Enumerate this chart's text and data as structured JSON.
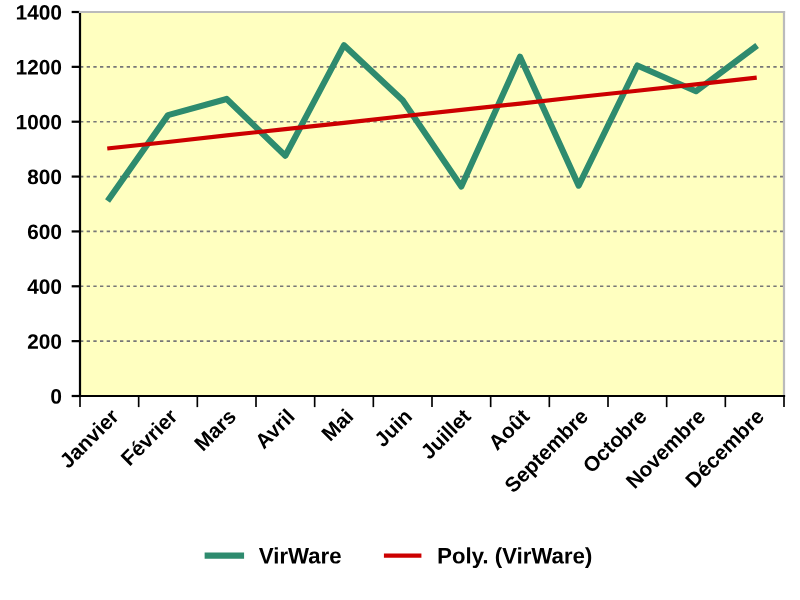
{
  "chart_data": {
    "type": "line",
    "categories": [
      "Janvier",
      "Février",
      "Mars",
      "Avril",
      "Mai",
      "Juin",
      "Juillet",
      "Août",
      "Septembre",
      "Octobre",
      "Novembre",
      "Décembre"
    ],
    "series": [
      {
        "name": "VirWare",
        "color": "#2e8b6e",
        "values": [
          720,
          1024,
          1083,
          876,
          1279,
          1078,
          764,
          1237,
          767,
          1205,
          1111,
          1271
        ]
      },
      {
        "name": "Poly. (VirWare)",
        "color": "#cc0000",
        "values": [
          903,
          926,
          950,
          973,
          996,
          1020,
          1043,
          1066,
          1090,
          1113,
          1136,
          1160
        ]
      }
    ],
    "ylim": [
      0,
      1400
    ],
    "yticks": [
      0,
      200,
      400,
      600,
      800,
      1000,
      1200,
      1400
    ],
    "grid": "y",
    "legend": "bottom",
    "marker": "none",
    "line_style": "solid"
  }
}
